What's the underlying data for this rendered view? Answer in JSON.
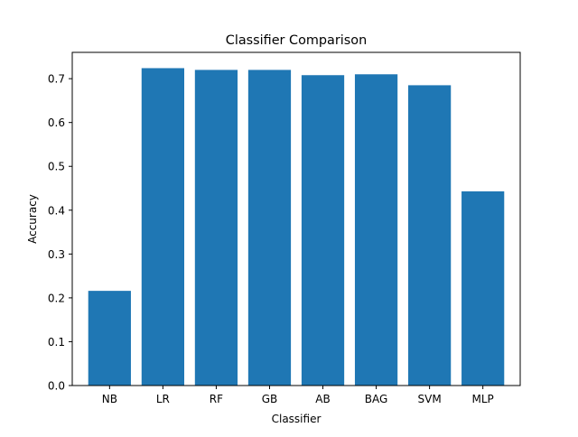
{
  "chart_data": {
    "type": "bar",
    "title": "Classifier Comparison",
    "xlabel": "Classifier",
    "ylabel": "Accuracy",
    "categories": [
      "NB",
      "LR",
      "RF",
      "GB",
      "AB",
      "BAG",
      "SVM",
      "MLP"
    ],
    "values": [
      0.216,
      0.724,
      0.72,
      0.72,
      0.708,
      0.71,
      0.685,
      0.443
    ],
    "ylim": [
      0,
      0.76
    ],
    "yticks": [
      0.0,
      0.1,
      0.2,
      0.3,
      0.4,
      0.5,
      0.6,
      0.7
    ],
    "ytick_labels": [
      "0.0",
      "0.1",
      "0.2",
      "0.3",
      "0.4",
      "0.5",
      "0.6",
      "0.7"
    ],
    "bar_color": "#1f77b4",
    "grid": false,
    "legend": "none"
  }
}
